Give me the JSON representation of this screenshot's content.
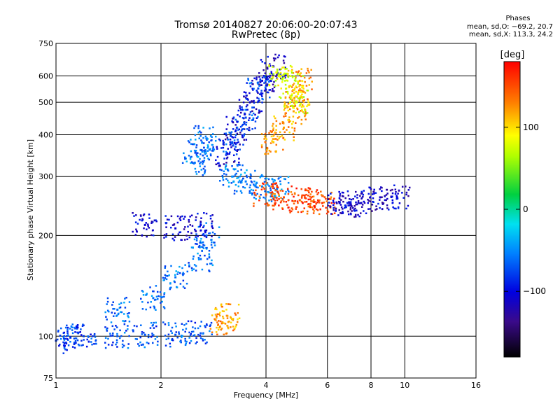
{
  "header": {
    "title_line1": "Tromsø 20140827 20:06:00-20:07:43",
    "title_line2": "RwPretec (8p)",
    "phase_heading": "Phases",
    "phase_o": "mean, sd,O: −69.2, 20.7",
    "phase_x": "mean, sd,X: 113.3, 24.2"
  },
  "colorbar": {
    "unit": "deg",
    "tick_labels": [
      "100",
      "0",
      "−100"
    ],
    "range": [
      -180,
      180
    ]
  },
  "chart_data": {
    "type": "scatter",
    "title": "Tromsø 20140827 20:06:00-20:07:43",
    "subtitle": "RwPretec (8p)",
    "xlabel": "Frequency [MHz]",
    "ylabel": "Stationary phase Virtual Height [km]",
    "x_scale": "log",
    "y_scale": "log",
    "xlim": [
      1,
      16
    ],
    "ylim": [
      75,
      750
    ],
    "x_ticks": [
      1,
      2,
      4,
      6,
      8,
      10,
      16
    ],
    "x_tick_labels": [
      "1",
      "2",
      "4",
      "6",
      "8",
      "10",
      "16"
    ],
    "y_ticks": [
      75,
      100,
      200,
      300,
      400,
      500,
      600,
      750
    ],
    "y_tick_labels": [
      "75",
      "100",
      "200",
      "300",
      "400",
      "500",
      "600",
      "750"
    ],
    "grid": true,
    "color_variable": "phase [deg]",
    "point_groups": [
      {
        "x": [
          1.0,
          1.1,
          1.2
        ],
        "y": [
          97,
          99,
          100
        ],
        "phase": -80
      },
      {
        "x": [
          1.5,
          1.8,
          2.2,
          2.6
        ],
        "y": [
          100,
          101,
          101,
          102
        ],
        "phase": -70
      },
      {
        "x": [
          1.5,
          1.9,
          2.2,
          2.6,
          2.7
        ],
        "y": [
          120,
          130,
          150,
          170,
          200
        ],
        "phase": -60
      },
      {
        "x": [
          1.8,
          2.2,
          2.6
        ],
        "y": [
          215,
          210,
          215
        ],
        "phase": -105
      },
      {
        "x": [
          2.5,
          2.6,
          2.7
        ],
        "y": [
          330,
          360,
          390
        ],
        "phase": -60
      },
      {
        "x": [
          3.1,
          3.3,
          3.6,
          3.9,
          4.2
        ],
        "y": [
          350,
          420,
          500,
          580,
          640
        ],
        "phase": -110
      },
      {
        "x": [
          3.2,
          3.5,
          3.8
        ],
        "y": [
          380,
          450,
          550
        ],
        "phase": -75
      },
      {
        "x": [
          4.2,
          4.5,
          4.8,
          4.9,
          5.0
        ],
        "y": [
          380,
          420,
          470,
          520,
          580
        ],
        "phase": 120
      },
      {
        "x": [
          4.4,
          4.7,
          4.9
        ],
        "y": [
          600,
          560,
          500
        ],
        "phase": 80
      },
      {
        "x": [
          3.2,
          3.5,
          3.9,
          4.3
        ],
        "y": [
          300,
          290,
          280,
          275
        ],
        "phase": -55
      },
      {
        "x": [
          4.0,
          4.5,
          5.0,
          5.5,
          5.8
        ],
        "y": [
          265,
          260,
          255,
          252,
          250
        ],
        "phase": 150
      },
      {
        "x": [
          6.5,
          7.0,
          7.5,
          8.5,
          9.5
        ],
        "y": [
          250,
          248,
          250,
          260,
          260
        ],
        "phase": -110
      },
      {
        "x": [
          3.0,
          3.1
        ],
        "y": [
          110,
          115
        ],
        "phase": 120
      }
    ]
  }
}
